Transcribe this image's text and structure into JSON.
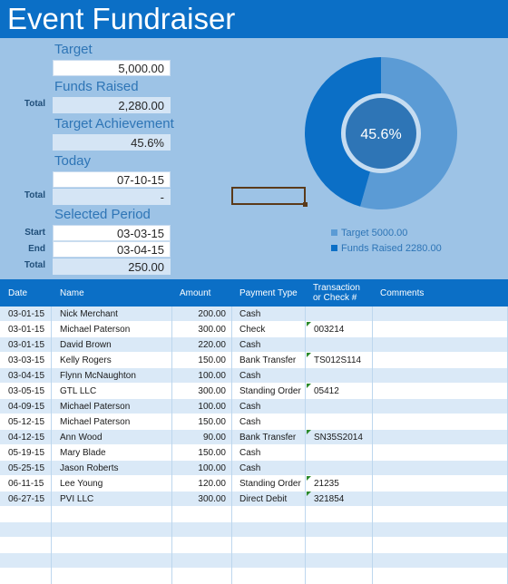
{
  "title": "Event Fundraiser",
  "summary": {
    "target_label": "Target",
    "target_value": "5,000.00",
    "funds_label": "Funds Raised",
    "funds_side": "Total",
    "funds_value": "2,280.00",
    "achievement_label": "Target Achievement",
    "achievement_value": "45.6%",
    "today_label": "Today",
    "today_value": "07-10-15",
    "today_side": "Total",
    "today_total": "-",
    "period_label": "Selected Period",
    "start_side": "Start",
    "start_value": "03-03-15",
    "end_side": "End",
    "end_value": "03-04-15",
    "period_side": "Total",
    "period_total": "250.00"
  },
  "chart_data": {
    "type": "pie",
    "center_label": "45.6%",
    "categories": [
      "Target",
      "Funds Raised"
    ],
    "values": [
      5000,
      2280
    ],
    "achievement_fraction": 0.456,
    "legend": [
      "Target 5000.00",
      "Funds Raised 2280.00"
    ],
    "colors": [
      "#5b9bd5",
      "#0b6fc6"
    ],
    "legend_position": "bottom"
  },
  "table": {
    "headers": [
      "Date",
      "Name",
      "Amount",
      "Payment Type",
      "Transaction or Check #",
      "Comments"
    ],
    "rows": [
      {
        "date": "03-01-15",
        "name": "Nick Merchant",
        "amount": "200.00",
        "type": "Cash",
        "txn": "",
        "comments": ""
      },
      {
        "date": "03-01-15",
        "name": "Michael Paterson",
        "amount": "300.00",
        "type": "Check",
        "txn": "003214",
        "comments": ""
      },
      {
        "date": "03-01-15",
        "name": "David Brown",
        "amount": "220.00",
        "type": "Cash",
        "txn": "",
        "comments": ""
      },
      {
        "date": "03-03-15",
        "name": "Kelly Rogers",
        "amount": "150.00",
        "type": "Bank Transfer",
        "txn": "TS012S114",
        "comments": ""
      },
      {
        "date": "03-04-15",
        "name": "Flynn McNaughton",
        "amount": "100.00",
        "type": "Cash",
        "txn": "",
        "comments": ""
      },
      {
        "date": "03-05-15",
        "name": "GTL LLC",
        "amount": "300.00",
        "type": "Standing Order",
        "txn": "05412",
        "comments": ""
      },
      {
        "date": "04-09-15",
        "name": "Michael Paterson",
        "amount": "100.00",
        "type": "Cash",
        "txn": "",
        "comments": ""
      },
      {
        "date": "05-12-15",
        "name": "Michael Paterson",
        "amount": "150.00",
        "type": "Cash",
        "txn": "",
        "comments": ""
      },
      {
        "date": "04-12-15",
        "name": "Ann Wood",
        "amount": "90.00",
        "type": "Bank Transfer",
        "txn": "SN35S2014",
        "comments": ""
      },
      {
        "date": "05-19-15",
        "name": "Mary Blade",
        "amount": "150.00",
        "type": "Cash",
        "txn": "",
        "comments": ""
      },
      {
        "date": "05-25-15",
        "name": "Jason Roberts",
        "amount": "100.00",
        "type": "Cash",
        "txn": "",
        "comments": ""
      },
      {
        "date": "06-11-15",
        "name": "Lee Young",
        "amount": "120.00",
        "type": "Standing Order",
        "txn": "21235",
        "comments": ""
      },
      {
        "date": "06-27-15",
        "name": "PVI LLC",
        "amount": "300.00",
        "type": "Direct Debit",
        "txn": "321854",
        "comments": ""
      },
      {
        "date": "",
        "name": "",
        "amount": "",
        "type": "",
        "txn": "",
        "comments": ""
      },
      {
        "date": "",
        "name": "",
        "amount": "",
        "type": "",
        "txn": "",
        "comments": ""
      },
      {
        "date": "",
        "name": "",
        "amount": "",
        "type": "",
        "txn": "",
        "comments": ""
      },
      {
        "date": "",
        "name": "",
        "amount": "",
        "type": "",
        "txn": "",
        "comments": ""
      },
      {
        "date": "",
        "name": "",
        "amount": "",
        "type": "",
        "txn": "",
        "comments": ""
      },
      {
        "date": "",
        "name": "",
        "amount": "",
        "type": "",
        "txn": "",
        "comments": ""
      }
    ]
  }
}
